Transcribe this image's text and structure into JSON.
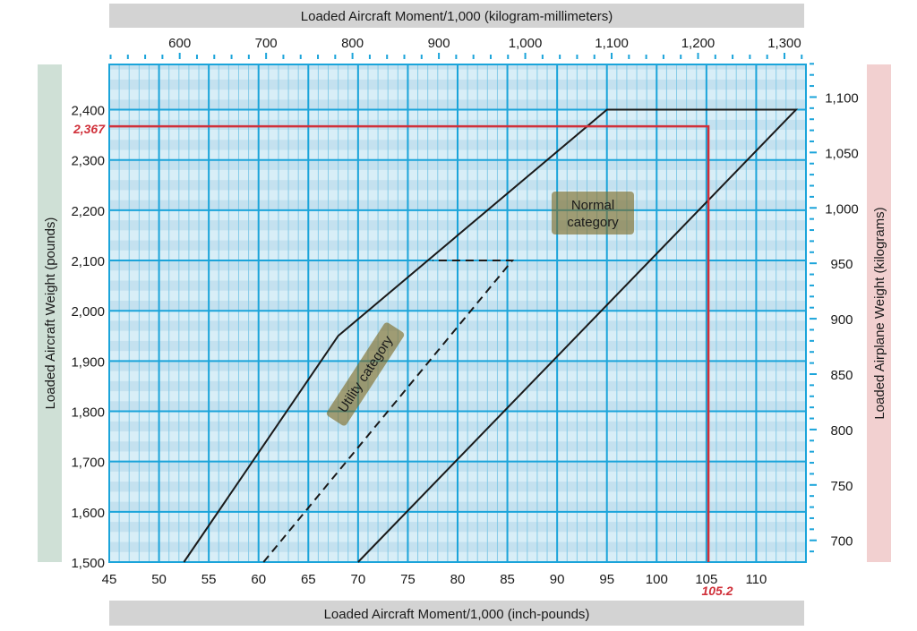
{
  "chart_data": {
    "type": "line",
    "top_xlabel": "Loaded Aircraft Moment/1,000 (kilogram-millimeters)",
    "xlabel": "Loaded Aircraft Moment/1,000 (inch-pounds)",
    "ylabel": "Loaded  Aircraft Weight (pounds)",
    "right_ylabel": "Loaded Airplane Weight (kilograms)",
    "xlim": [
      45,
      115
    ],
    "ylim": [
      1500,
      2490
    ],
    "x_ticks": [
      45,
      50,
      55,
      60,
      65,
      70,
      75,
      80,
      85,
      90,
      95,
      100,
      105,
      110
    ],
    "y_ticks": [
      1500,
      1600,
      1700,
      1800,
      1900,
      2000,
      2100,
      2200,
      2300,
      2400
    ],
    "y_tick_labels": [
      "1,500",
      "1,600",
      "1,700",
      "1,800",
      "1,900",
      "2,000",
      "2,100",
      "2,200",
      "2,300",
      "2,400"
    ],
    "top_ticks": [
      600,
      700,
      800,
      900,
      1000,
      1100,
      1200,
      1300
    ],
    "top_tick_labels": [
      "600",
      "700",
      "800",
      "900",
      "1,000",
      "1,100",
      "1,200",
      "1,300"
    ],
    "right_ticks": [
      700,
      750,
      800,
      850,
      900,
      950,
      1000,
      1050,
      1100
    ],
    "right_tick_labels": [
      "700",
      "750",
      "800",
      "850",
      "900",
      "950",
      "1,000",
      "1,050",
      "1,100"
    ],
    "grid": true,
    "series": [
      {
        "label_text": "Normal category",
        "style": "solid",
        "points": [
          [
            52.5,
            1500
          ],
          [
            68,
            1950
          ],
          [
            95,
            2400
          ],
          [
            114,
            2400
          ],
          [
            70,
            1500
          ]
        ]
      },
      {
        "label_text": "Utility category",
        "style": "dashed",
        "points": [
          [
            60.5,
            1500
          ],
          [
            85.5,
            2100
          ],
          [
            77.5,
            2100
          ]
        ]
      }
    ],
    "annotation": {
      "moment": 105.2,
      "weight": 2367,
      "moment_label": "105.2",
      "weight_label": "2,367",
      "color": "#d0303a"
    },
    "labels": {
      "normal": [
        "Normal",
        "category"
      ],
      "utility": "Utility category"
    },
    "colors": {
      "grid_major": "#1ba4da",
      "grid_minor": "#86cbe8",
      "background": "#d8eef7",
      "band": "#c4e1ef",
      "line": "#1a1a1a",
      "label_box": "#8a7a3a",
      "left_band": "#cfe0d6",
      "right_band": "#f2d0d0",
      "top_band": "#d3d3d3"
    }
  }
}
